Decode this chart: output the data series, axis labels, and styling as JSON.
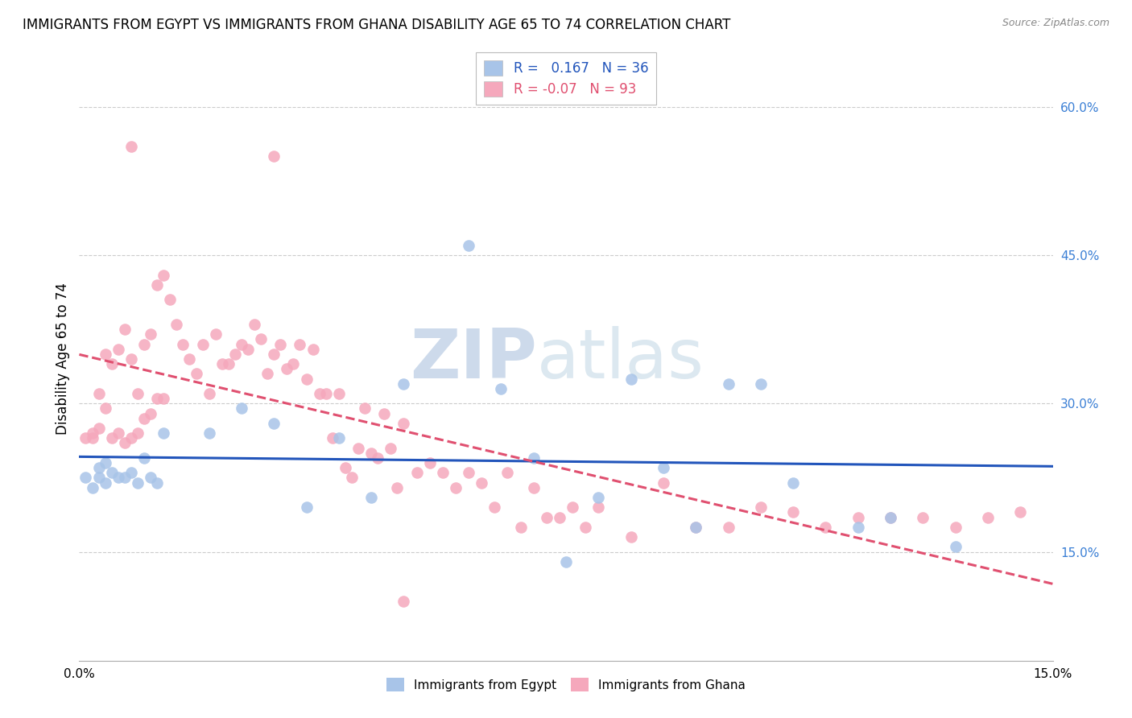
{
  "title": "IMMIGRANTS FROM EGYPT VS IMMIGRANTS FROM GHANA DISABILITY AGE 65 TO 74 CORRELATION CHART",
  "source": "Source: ZipAtlas.com",
  "ylabel": "Disability Age 65 to 74",
  "xlim": [
    0.0,
    0.15
  ],
  "ylim": [
    0.04,
    0.65
  ],
  "egypt_R": 0.167,
  "egypt_N": 36,
  "ghana_R": -0.07,
  "ghana_N": 93,
  "egypt_color": "#a8c4e8",
  "ghana_color": "#f5a8bc",
  "egypt_line_color": "#2255bb",
  "ghana_line_color": "#e05070",
  "watermark_color": "#cddaeb",
  "background_color": "#ffffff",
  "grid_color": "#cccccc",
  "title_fontsize": 12,
  "egypt_x": [
    0.001,
    0.002,
    0.003,
    0.003,
    0.004,
    0.004,
    0.005,
    0.006,
    0.007,
    0.008,
    0.009,
    0.01,
    0.011,
    0.012,
    0.013,
    0.02,
    0.025,
    0.03,
    0.035,
    0.04,
    0.045,
    0.05,
    0.06,
    0.065,
    0.07,
    0.075,
    0.08,
    0.085,
    0.09,
    0.095,
    0.1,
    0.105,
    0.11,
    0.12,
    0.125,
    0.135
  ],
  "egypt_y": [
    0.225,
    0.215,
    0.225,
    0.235,
    0.22,
    0.24,
    0.23,
    0.225,
    0.225,
    0.23,
    0.22,
    0.245,
    0.225,
    0.22,
    0.27,
    0.27,
    0.295,
    0.28,
    0.195,
    0.265,
    0.205,
    0.32,
    0.46,
    0.315,
    0.245,
    0.14,
    0.205,
    0.325,
    0.235,
    0.175,
    0.32,
    0.32,
    0.22,
    0.175,
    0.185,
    0.155
  ],
  "ghana_x": [
    0.001,
    0.002,
    0.002,
    0.003,
    0.003,
    0.004,
    0.004,
    0.005,
    0.005,
    0.006,
    0.006,
    0.007,
    0.007,
    0.008,
    0.008,
    0.009,
    0.009,
    0.01,
    0.01,
    0.011,
    0.011,
    0.012,
    0.012,
    0.013,
    0.013,
    0.014,
    0.015,
    0.016,
    0.017,
    0.018,
    0.019,
    0.02,
    0.021,
    0.022,
    0.023,
    0.024,
    0.025,
    0.026,
    0.027,
    0.028,
    0.029,
    0.03,
    0.031,
    0.032,
    0.033,
    0.034,
    0.035,
    0.036,
    0.037,
    0.038,
    0.039,
    0.04,
    0.041,
    0.042,
    0.043,
    0.044,
    0.045,
    0.046,
    0.047,
    0.048,
    0.049,
    0.05,
    0.052,
    0.054,
    0.056,
    0.058,
    0.06,
    0.062,
    0.064,
    0.066,
    0.068,
    0.07,
    0.072,
    0.074,
    0.076,
    0.078,
    0.08,
    0.085,
    0.09,
    0.095,
    0.1,
    0.105,
    0.11,
    0.115,
    0.12,
    0.125,
    0.13,
    0.135,
    0.14,
    0.145,
    0.05,
    0.03,
    0.008
  ],
  "ghana_y": [
    0.265,
    0.27,
    0.265,
    0.275,
    0.31,
    0.295,
    0.35,
    0.265,
    0.34,
    0.27,
    0.355,
    0.26,
    0.375,
    0.265,
    0.345,
    0.27,
    0.31,
    0.285,
    0.36,
    0.29,
    0.37,
    0.305,
    0.42,
    0.305,
    0.43,
    0.405,
    0.38,
    0.36,
    0.345,
    0.33,
    0.36,
    0.31,
    0.37,
    0.34,
    0.34,
    0.35,
    0.36,
    0.355,
    0.38,
    0.365,
    0.33,
    0.35,
    0.36,
    0.335,
    0.34,
    0.36,
    0.325,
    0.355,
    0.31,
    0.31,
    0.265,
    0.31,
    0.235,
    0.225,
    0.255,
    0.295,
    0.25,
    0.245,
    0.29,
    0.255,
    0.215,
    0.28,
    0.23,
    0.24,
    0.23,
    0.215,
    0.23,
    0.22,
    0.195,
    0.23,
    0.175,
    0.215,
    0.185,
    0.185,
    0.195,
    0.175,
    0.195,
    0.165,
    0.22,
    0.175,
    0.175,
    0.195,
    0.19,
    0.175,
    0.185,
    0.185,
    0.185,
    0.175,
    0.185,
    0.19,
    0.1,
    0.55,
    0.56
  ]
}
